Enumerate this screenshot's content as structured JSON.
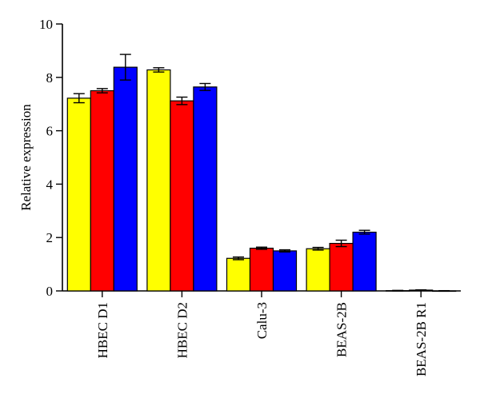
{
  "chart_data": {
    "type": "bar",
    "title": "",
    "xlabel": "",
    "ylabel": "Relative expression",
    "ylim": [
      0,
      10
    ],
    "yticks": [
      "0",
      "2",
      "4",
      "6",
      "8",
      "10"
    ],
    "grid": false,
    "legend": "none",
    "categories": [
      "HBEC D1",
      "HBEC D2",
      "Calu-3",
      "BEAS-2B",
      "BEAS-2B R1"
    ],
    "series": [
      {
        "color": "#ffff00",
        "values": [
          7.22,
          8.28,
          1.22,
          1.58,
          0.01
        ],
        "errors": [
          0.17,
          0.08,
          0.05,
          0.05,
          0.01
        ]
      },
      {
        "color": "#ff0000",
        "values": [
          7.5,
          7.12,
          1.6,
          1.78,
          0.03
        ],
        "errors": [
          0.08,
          0.14,
          0.04,
          0.12,
          0.01
        ]
      },
      {
        "color": "#0000ff",
        "values": [
          8.38,
          7.64,
          1.5,
          2.2,
          0.0
        ],
        "errors": [
          0.48,
          0.13,
          0.04,
          0.07,
          0.01
        ]
      }
    ]
  }
}
